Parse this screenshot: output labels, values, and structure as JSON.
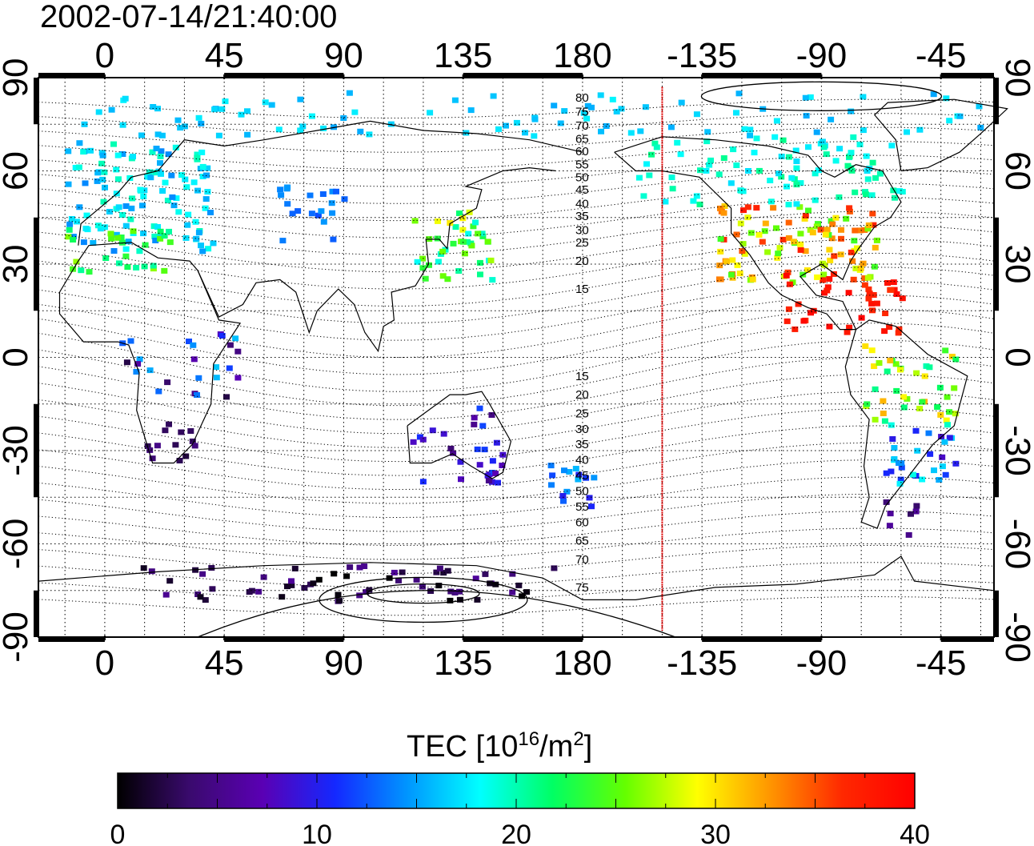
{
  "title": "2002-07-14/21:40:00",
  "map": {
    "lon_ticks_top": [
      "0",
      "45",
      "90",
      "135",
      "180",
      "-135",
      "-90",
      "-45"
    ],
    "lon_ticks_bottom": [
      "0",
      "45",
      "90",
      "135",
      "180",
      "-135",
      "-90",
      "-45"
    ],
    "lat_ticks_left": [
      "90",
      "60",
      "30",
      "0",
      "-30",
      "-60",
      "-90"
    ],
    "lat_ticks_right": [
      "90",
      "60",
      "30",
      "0",
      "-30",
      "-60",
      "-90"
    ],
    "lon_range": [
      -25,
      335
    ],
    "lat_range": [
      -90,
      90
    ],
    "terminator_lon": -150,
    "terminator_color": "#e00000",
    "contour_labels_north": [
      "80",
      "75",
      "70",
      "65",
      "60",
      "55",
      "50",
      "45",
      "40",
      "35",
      "30",
      "25",
      "20",
      "15"
    ],
    "contour_labels_south": [
      "15",
      "20",
      "25",
      "30",
      "35",
      "40",
      "45",
      "50",
      "55",
      "60",
      "65",
      "70",
      "75"
    ]
  },
  "colorbar": {
    "label": "TEC  [10",
    "label_sup": "16",
    "label_mid": "/m",
    "label_sup2": "2",
    "label_end": "]",
    "ticks": [
      "0",
      "10",
      "20",
      "30",
      "40"
    ],
    "range": [
      0,
      40
    ],
    "colors": [
      "#000000",
      "#3a0a6e",
      "#5a00b4",
      "#1428ff",
      "#0096ff",
      "#00ffff",
      "#00ff64",
      "#64ff00",
      "#ffff00",
      "#ff9600",
      "#ff2800",
      "#ff0000"
    ]
  }
}
